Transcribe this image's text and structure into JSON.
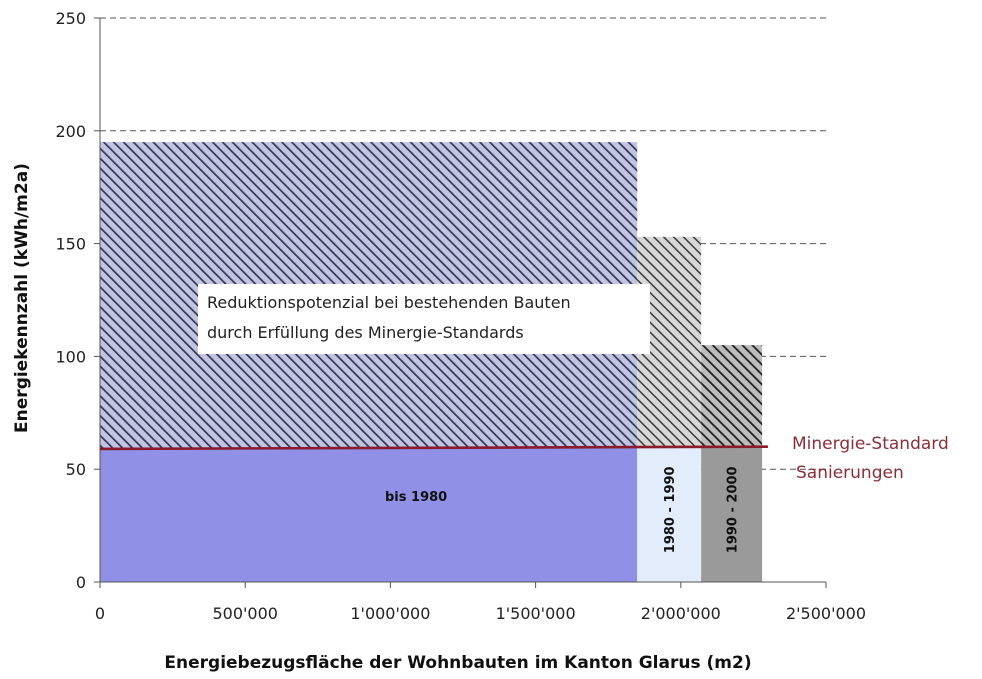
{
  "chart_data": {
    "type": "bar",
    "xlabel": "Energiebezugsfläche der Wohnbauten im Kanton Glarus (m2)",
    "ylabel": "Energiekennzahl (kWh/m2a)",
    "xlim": [
      0,
      2500000
    ],
    "ylim": [
      0,
      250
    ],
    "x_ticks": [
      "0",
      "500'000",
      "1'000'000",
      "1'500'000",
      "2'000'000",
      "2'500'000"
    ],
    "y_ticks": [
      "0",
      "50",
      "100",
      "150",
      "200",
      "250"
    ],
    "grid": "horizontal dashed",
    "segments": [
      {
        "label": "bis 1980",
        "x_start": 0,
        "x_end": 1850000,
        "value": 195
      },
      {
        "label": "1980 - 1990",
        "x_start": 1850000,
        "x_end": 2070000,
        "value": 153
      },
      {
        "label": "1990 - 2000",
        "x_start": 2070000,
        "x_end": 2280000,
        "value": 105
      }
    ],
    "reference_line": {
      "y_start": 59,
      "y_end": 60,
      "x_end": 2300000,
      "label_lines": [
        "Minergie-Standard",
        "Sanierungen"
      ],
      "color": "#8b1a2b"
    },
    "annotation": {
      "lines": [
        "Reduktionspotenzial bei bestehenden Bauten",
        "durch Erfüllung des Minergie-Standards"
      ]
    },
    "colors": {
      "bar_fill_1": "#8f90e6",
      "bar_fill_2": "#e2ecfb",
      "bar_fill_3": "#9a9a9a",
      "hatch_1_bg": "#c3c5df",
      "hatch_1_line": "#2f3560",
      "hatch_2_bg": "#d7d7d7",
      "hatch_2_line": "#3a3a3a",
      "hatch_3_bg": "#bdbdbd",
      "hatch_3_line": "#1f1f1f"
    }
  }
}
